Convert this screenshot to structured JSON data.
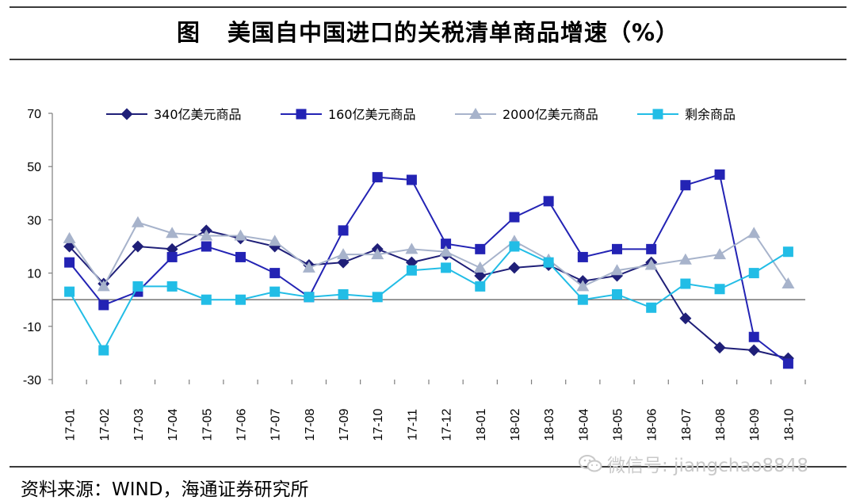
{
  "figure": {
    "label": "图",
    "title": "美国自中国进口的关税清单商品增速（%）",
    "source": "资料来源：WIND，海通证券研究所",
    "watermark": "微信号: jiangchao8848"
  },
  "chart_data": {
    "type": "line",
    "title": "美国自中国进口的关税清单商品增速（%）",
    "xlabel": "",
    "ylabel": "",
    "ylim": [
      -30,
      70
    ],
    "yticks": [
      70,
      50,
      30,
      10,
      -10,
      -30
    ],
    "categories": [
      "17-01",
      "17-02",
      "17-03",
      "17-04",
      "17-05",
      "17-06",
      "17-07",
      "17-08",
      "17-09",
      "17-10",
      "17-11",
      "17-12",
      "18-01",
      "18-02",
      "18-03",
      "18-04",
      "18-05",
      "18-06",
      "18-07",
      "18-08",
      "18-09",
      "18-10"
    ],
    "legend_position": "top",
    "series": [
      {
        "name": "340亿美元商品",
        "marker": "diamond",
        "color": "#1f1f78",
        "values": [
          20,
          6,
          20,
          19,
          26,
          23,
          20,
          13,
          14,
          19,
          14,
          17,
          9,
          12,
          13,
          7,
          9,
          14,
          -7,
          -18,
          -19,
          -22
        ]
      },
      {
        "name": "160亿美元商品",
        "marker": "square",
        "color": "#2323b4",
        "values": [
          14,
          -2,
          3,
          16,
          20,
          16,
          10,
          1,
          26,
          46,
          45,
          21,
          19,
          31,
          37,
          16,
          19,
          19,
          43,
          47,
          -14,
          -24
        ]
      },
      {
        "name": "2000亿美元商品",
        "marker": "triangle",
        "color": "#a7b3cb",
        "values": [
          23,
          5,
          29,
          25,
          24,
          24,
          22,
          12,
          17,
          17,
          19,
          18,
          12,
          22,
          15,
          5,
          11,
          13,
          15,
          17,
          25,
          6
        ]
      },
      {
        "name": "剩余商品",
        "marker": "square",
        "color": "#22bde6",
        "values": [
          3,
          -19,
          5,
          5,
          0,
          0,
          3,
          1,
          2,
          1,
          11,
          12,
          5,
          20,
          14,
          0,
          2,
          -3,
          6,
          4,
          10,
          18
        ]
      }
    ]
  }
}
